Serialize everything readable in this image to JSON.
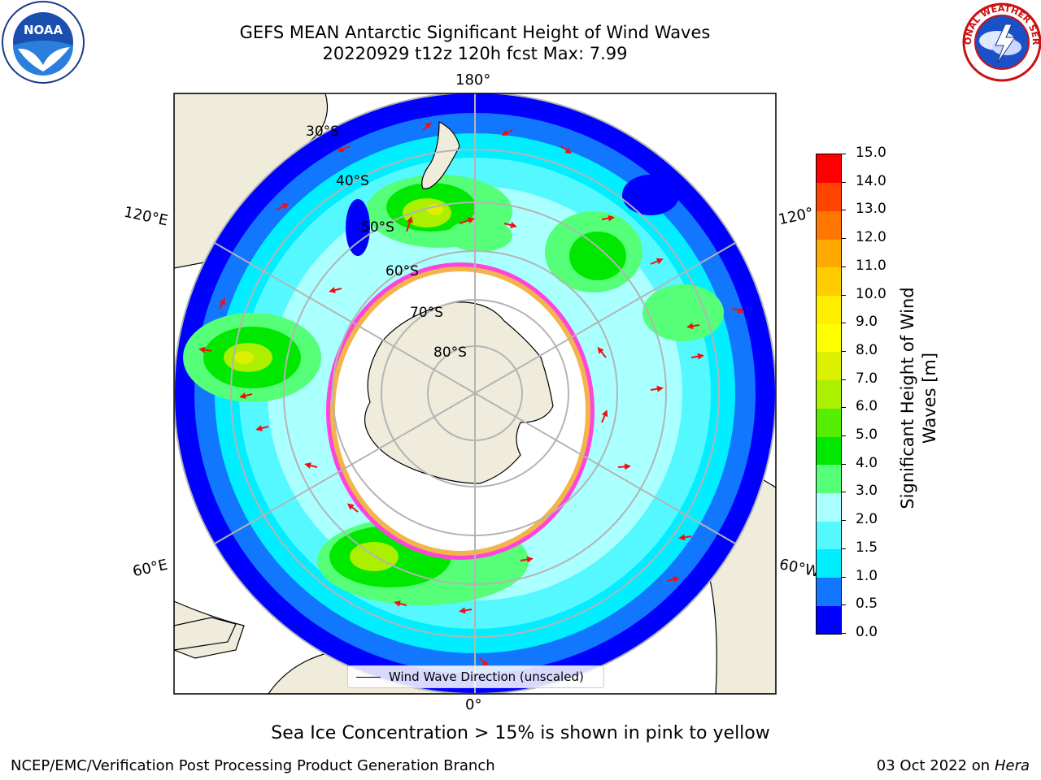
{
  "header": {
    "title_line1": "GEFS MEAN Antarctic Significant Height of Wind Waves",
    "title_line2": "20220929 t12z 120h fcst   Max: 7.99"
  },
  "logos": {
    "left": {
      "icon": "noaa-logo-icon",
      "text": "NOAA"
    },
    "right": {
      "icon": "national-weather-service-logo-icon",
      "text": "NATIONAL WEATHER SERVICE"
    }
  },
  "map": {
    "projection": "south-polar-stereographic",
    "longitude_labels": {
      "top": "180°",
      "bottom": "0°",
      "upper_left": "120°E",
      "lower_left": "60°E",
      "upper_right": "120°",
      "lower_right": "60°W"
    },
    "latitude_labels": [
      "30°S",
      "40°S",
      "50°S",
      "60°S",
      "70°S",
      "80°S"
    ],
    "colors": {
      "land": "#efecdc",
      "sea_ice_pink": "#ff44dd",
      "sea_ice_yellow": "#f3b44a",
      "arrow": "#ee1111",
      "grid": "#b4b4b4"
    },
    "legend": {
      "label": "Wind Wave Direction (unscaled)"
    }
  },
  "colorbar": {
    "label_line1": "Significant Height of Wind",
    "label_line2": "Waves [m]",
    "ticks": [
      "0.0",
      "0.5",
      "1.0",
      "1.5",
      "2.0",
      "3.0",
      "4.0",
      "5.0",
      "6.0",
      "7.0",
      "8.0",
      "9.0",
      "10.0",
      "11.0",
      "12.0",
      "13.0",
      "14.0",
      "15.0"
    ],
    "colors": [
      "#0000ff",
      "#1177ff",
      "#00eeff",
      "#55f8ff",
      "#aaffff",
      "#55ff77",
      "#00e800",
      "#55ee00",
      "#aaf000",
      "#ddf000",
      "#ffff00",
      "#ffee00",
      "#ffcc00",
      "#ffaa00",
      "#ff7700",
      "#ff4400",
      "#ff0000"
    ]
  },
  "footnote": "Sea Ice Concentration > 15% is shown in pink to yellow",
  "credits": {
    "left": "NCEP/EMC/Verification Post Processing Product Generation Branch",
    "right_prefix": "03 Oct 2022 on ",
    "right_host": "Hera"
  }
}
